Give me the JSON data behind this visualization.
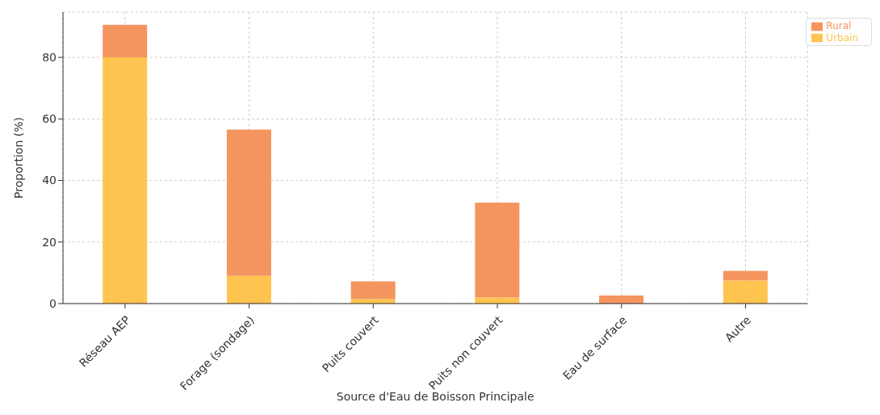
{
  "chart_data": {
    "type": "bar",
    "stacked": true,
    "xlabel": "Source d'Eau de Boisson Principale",
    "ylabel": "Proportion (%)",
    "categories": [
      "Réseau AEP",
      "Forage (sondage)",
      "Puits couvert",
      "Puits non couvert",
      "Eau de surface",
      "Autre"
    ],
    "series": [
      {
        "name": "Urbain",
        "color": "#fec44f",
        "values": [
          80,
          9,
          1.5,
          2,
          0,
          7.5
        ]
      },
      {
        "name": "Rural",
        "color": "#f4955f",
        "values": [
          10.6,
          47.5,
          5.7,
          30.8,
          2.6,
          3.1
        ]
      }
    ],
    "ylim": [
      0,
      94.7
    ],
    "yticks": [
      0,
      20,
      40,
      60,
      80
    ],
    "grid": true,
    "legend": "top right"
  }
}
